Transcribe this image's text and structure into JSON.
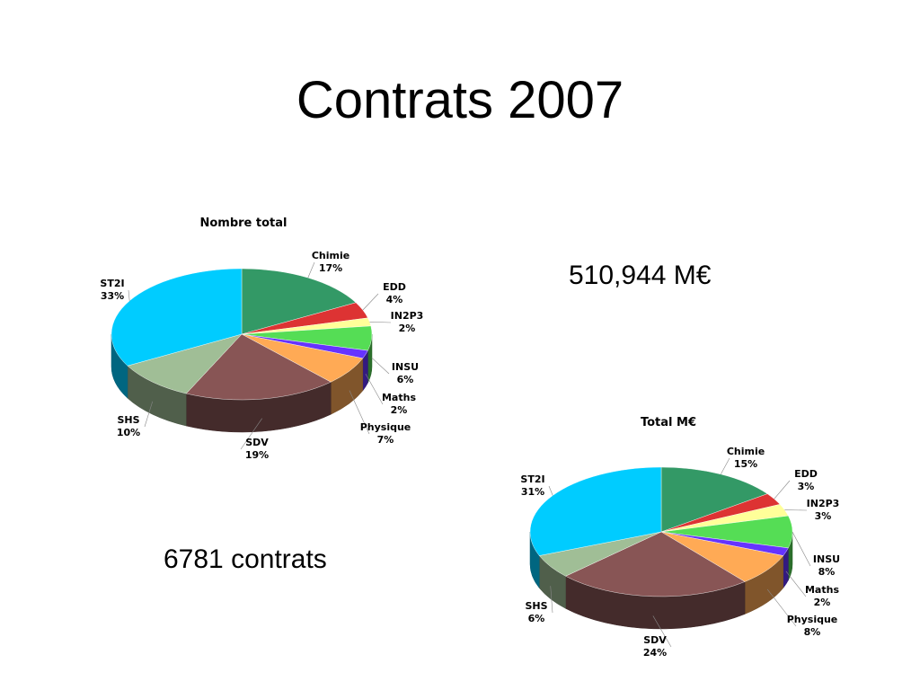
{
  "slide": {
    "title": "Contrats 2007",
    "total_amount": "510,944 M€",
    "contracts_count": "6781 contrats"
  },
  "chart_data": [
    {
      "type": "pie",
      "title": "Nombre total",
      "categories": [
        "Chimie",
        "EDD",
        "IN2P3",
        "INSU",
        "Maths",
        "Physique",
        "SDV",
        "SHS",
        "ST2I"
      ],
      "values": [
        17,
        4,
        2,
        6,
        2,
        7,
        19,
        10,
        33
      ],
      "labels": [
        "17%",
        "4%",
        "2%",
        "6%",
        "2%",
        "7%",
        "19%",
        "10%",
        "33%"
      ],
      "colors": [
        "#339966",
        "#dd3333",
        "#ffff99",
        "#55dd55",
        "#6633ff",
        "#ffaa55",
        "#885555",
        "#a0be96",
        "#00ccff"
      ]
    },
    {
      "type": "pie",
      "title": "Total M€",
      "categories": [
        "Chimie",
        "EDD",
        "IN2P3",
        "INSU",
        "Maths",
        "Physique",
        "SDV",
        "SHS",
        "ST2I"
      ],
      "values": [
        15,
        3,
        3,
        8,
        2,
        8,
        24,
        6,
        31
      ],
      "labels": [
        "15%",
        "3%",
        "3%",
        "8%",
        "2%",
        "8%",
        "24%",
        "6%",
        "31%"
      ],
      "colors": [
        "#339966",
        "#dd3333",
        "#ffff99",
        "#55dd55",
        "#6633ff",
        "#ffaa55",
        "#885555",
        "#a0be96",
        "#00ccff"
      ]
    }
  ]
}
